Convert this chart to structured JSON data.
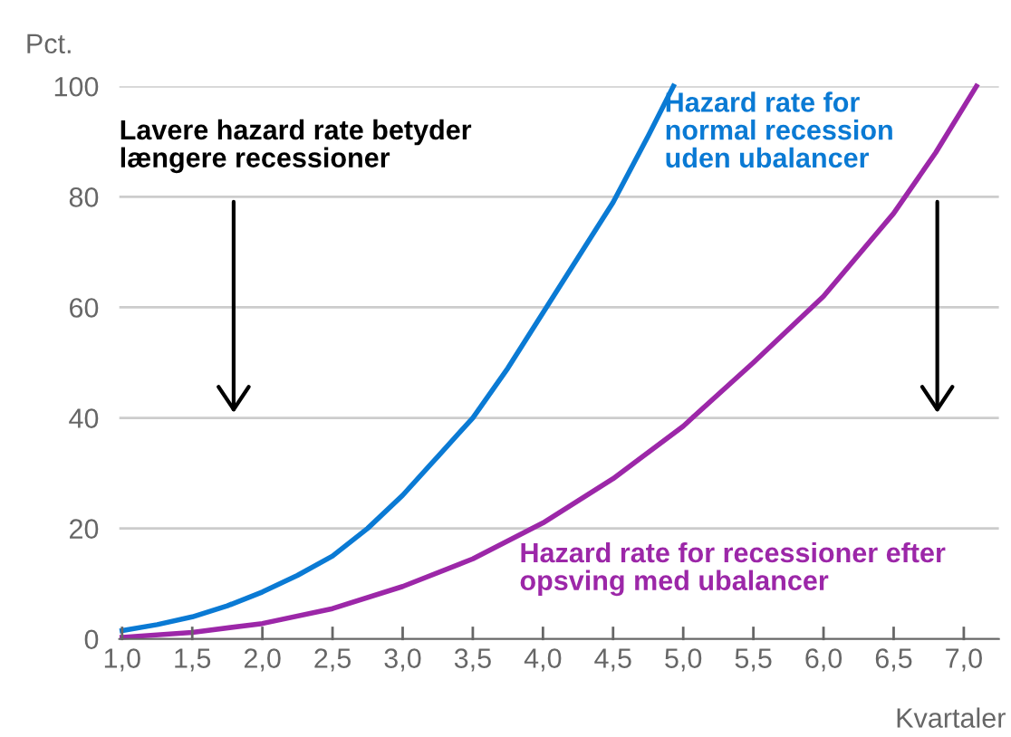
{
  "chart_data": {
    "type": "line",
    "ylabel": "Pct.",
    "xlabel": "Kvartaler",
    "annotations": [
      "Lavere hazard rate betyder\nlængere recessioner"
    ],
    "xlim": [
      0.98,
      7.25
    ],
    "ylim": [
      0,
      100
    ],
    "xticks": [
      {
        "value": 1,
        "label": "1,0"
      },
      {
        "value": 1.5,
        "label": "1,5"
      },
      {
        "value": 2,
        "label": "2,0"
      },
      {
        "value": 2.5,
        "label": "2,5"
      },
      {
        "value": 3,
        "label": "3,0"
      },
      {
        "value": 3.5,
        "label": "3,5"
      },
      {
        "value": 4,
        "label": "4,0"
      },
      {
        "value": 4.5,
        "label": "4,5"
      },
      {
        "value": 5,
        "label": "5,0"
      },
      {
        "value": 5.5,
        "label": "5,5"
      },
      {
        "value": 6,
        "label": "6,0"
      },
      {
        "value": 6.5,
        "label": "6,5"
      },
      {
        "value": 7,
        "label": "7,0"
      }
    ],
    "yticks": [
      0,
      20,
      40,
      60,
      80,
      100
    ],
    "grid": "y",
    "legend": false,
    "series": [
      {
        "name": "Hazard rate for\nnormal recession\nuden ubalancer",
        "color": "#0a7ad4",
        "x": [
          1.0,
          1.25,
          1.5,
          1.75,
          2.0,
          2.25,
          2.5,
          2.75,
          3.0,
          3.25,
          3.5,
          3.75,
          4.0,
          4.25,
          4.5,
          4.75,
          4.93
        ],
        "values": [
          1.5,
          2.6,
          4,
          6,
          8.5,
          11.5,
          15,
          20,
          26,
          33,
          40,
          49,
          59,
          69,
          79,
          91,
          100
        ]
      },
      {
        "name": "Hazard rate for recessioner efter\nopsving med ubalancer",
        "color": "#9c27a8",
        "x": [
          1.0,
          1.5,
          2.0,
          2.5,
          3.0,
          3.5,
          4.0,
          4.5,
          5.0,
          5.5,
          6.0,
          6.5,
          6.8,
          7.09
        ],
        "values": [
          0.3,
          1.2,
          2.8,
          5.5,
          9.5,
          14.5,
          21,
          29,
          38.5,
          50,
          62,
          77,
          88,
          100
        ]
      }
    ]
  }
}
